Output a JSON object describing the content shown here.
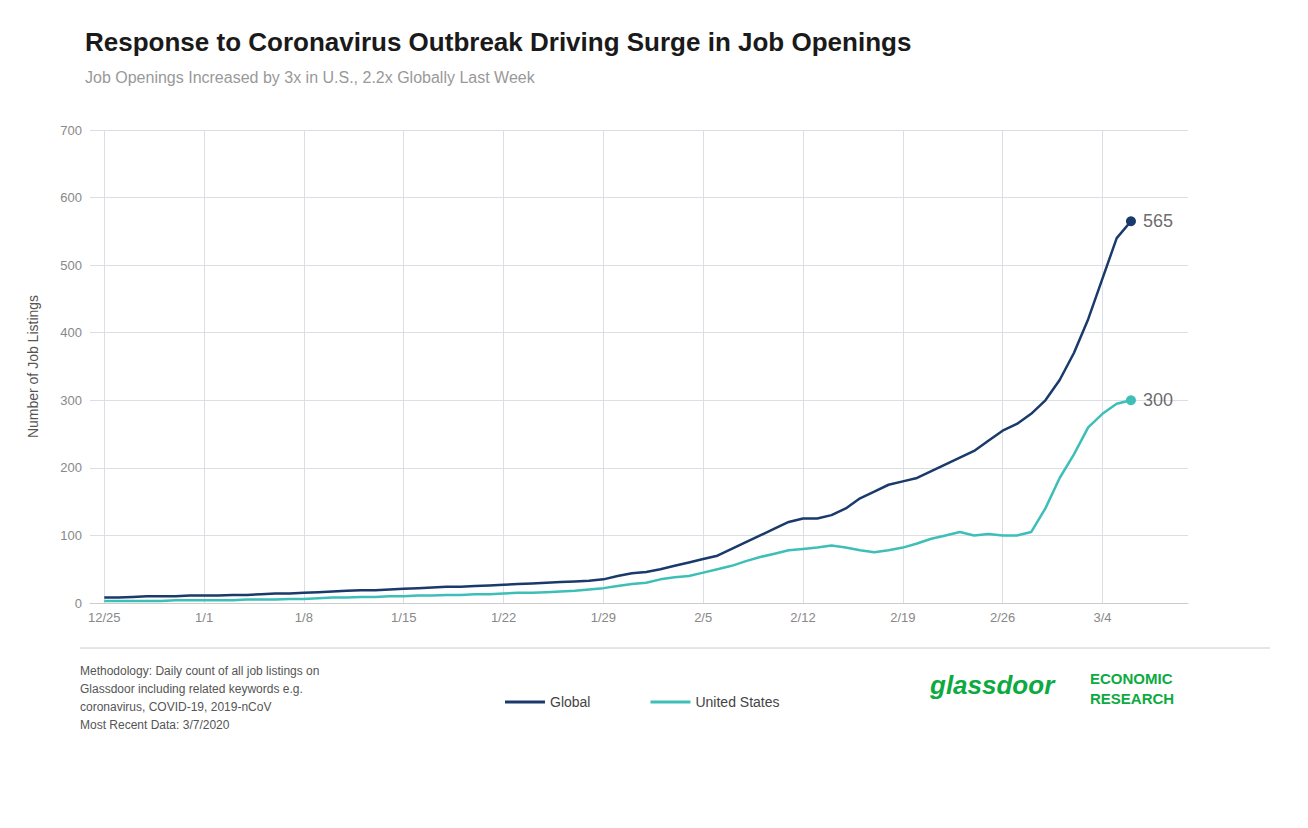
{
  "chart_data": {
    "type": "line",
    "title": "Response to Coronavirus Outbreak Driving Surge in Job Openings",
    "subtitle": "Job Openings Increased by 3x in U.S., 2.2x Globally Last Week",
    "y_label": "Number of Job Listings",
    "xlim": [
      -1,
      76
    ],
    "xticks": [
      {
        "value": 0,
        "label": "12/25"
      },
      {
        "value": 7,
        "label": "1/1"
      },
      {
        "value": 14,
        "label": "1/8"
      },
      {
        "value": 21,
        "label": "1/15"
      },
      {
        "value": 28,
        "label": "1/22"
      },
      {
        "value": 35,
        "label": "1/29"
      },
      {
        "value": 42,
        "label": "2/5"
      },
      {
        "value": 49,
        "label": "2/12"
      },
      {
        "value": 56,
        "label": "2/19"
      },
      {
        "value": 63,
        "label": "2/26"
      },
      {
        "value": 70,
        "label": "3/4"
      }
    ],
    "ylim": [
      0,
      700
    ],
    "yticks": [
      0,
      100,
      200,
      300,
      400,
      500,
      600,
      700
    ],
    "grid": true,
    "x": [
      0,
      1,
      2,
      3,
      4,
      5,
      6,
      7,
      8,
      9,
      10,
      11,
      12,
      13,
      14,
      15,
      16,
      17,
      18,
      19,
      20,
      21,
      22,
      23,
      24,
      25,
      26,
      27,
      28,
      29,
      30,
      31,
      32,
      33,
      34,
      35,
      36,
      37,
      38,
      39,
      40,
      41,
      42,
      43,
      44,
      45,
      46,
      47,
      48,
      49,
      50,
      51,
      52,
      53,
      54,
      55,
      56,
      57,
      58,
      59,
      60,
      61,
      62,
      63,
      64,
      65,
      66,
      67,
      68,
      69,
      70,
      71,
      72
    ],
    "series": [
      {
        "name": "Global",
        "color": "#1a3a6b",
        "values": [
          8,
          8,
          9,
          10,
          10,
          10,
          11,
          11,
          11,
          12,
          12,
          13,
          14,
          14,
          15,
          16,
          17,
          18,
          19,
          19,
          20,
          21,
          22,
          23,
          24,
          24,
          25,
          26,
          27,
          28,
          29,
          30,
          31,
          32,
          33,
          35,
          40,
          44,
          46,
          50,
          55,
          60,
          65,
          70,
          80,
          90,
          100,
          110,
          120,
          125,
          125,
          130,
          140,
          155,
          165,
          175,
          180,
          185,
          195,
          205,
          215,
          225,
          240,
          255,
          265,
          280,
          300,
          330,
          370,
          420,
          480,
          540,
          565
        ]
      },
      {
        "name": "United States",
        "color": "#3dbfb8",
        "values": [
          3,
          3,
          3,
          3,
          3,
          4,
          4,
          4,
          4,
          4,
          5,
          5,
          5,
          6,
          6,
          7,
          8,
          8,
          9,
          9,
          10,
          10,
          11,
          11,
          12,
          12,
          13,
          13,
          14,
          15,
          15,
          16,
          17,
          18,
          20,
          22,
          25,
          28,
          30,
          35,
          38,
          40,
          45,
          50,
          55,
          62,
          68,
          73,
          78,
          80,
          82,
          85,
          82,
          78,
          75,
          78,
          82,
          88,
          95,
          100,
          105,
          100,
          102,
          100,
          100,
          105,
          140,
          185,
          220,
          260,
          280,
          295,
          300
        ]
      }
    ],
    "annotations": [
      {
        "text": "565",
        "x": 72,
        "y": 565
      },
      {
        "text": "300",
        "x": 72,
        "y": 300
      }
    ],
    "notes": [
      "Methodology: Daily count of all job listings on",
      "Glassdoor including related keywords e.g.",
      "coronavirus, COVID-19, 2019-nCoV",
      "Most Recent Data: 3/7/2020"
    ],
    "branding": {
      "texts": [
        "glassdoor",
        "ECONOMIC\nRESEARCH"
      ],
      "color": "#0caa41"
    }
  }
}
